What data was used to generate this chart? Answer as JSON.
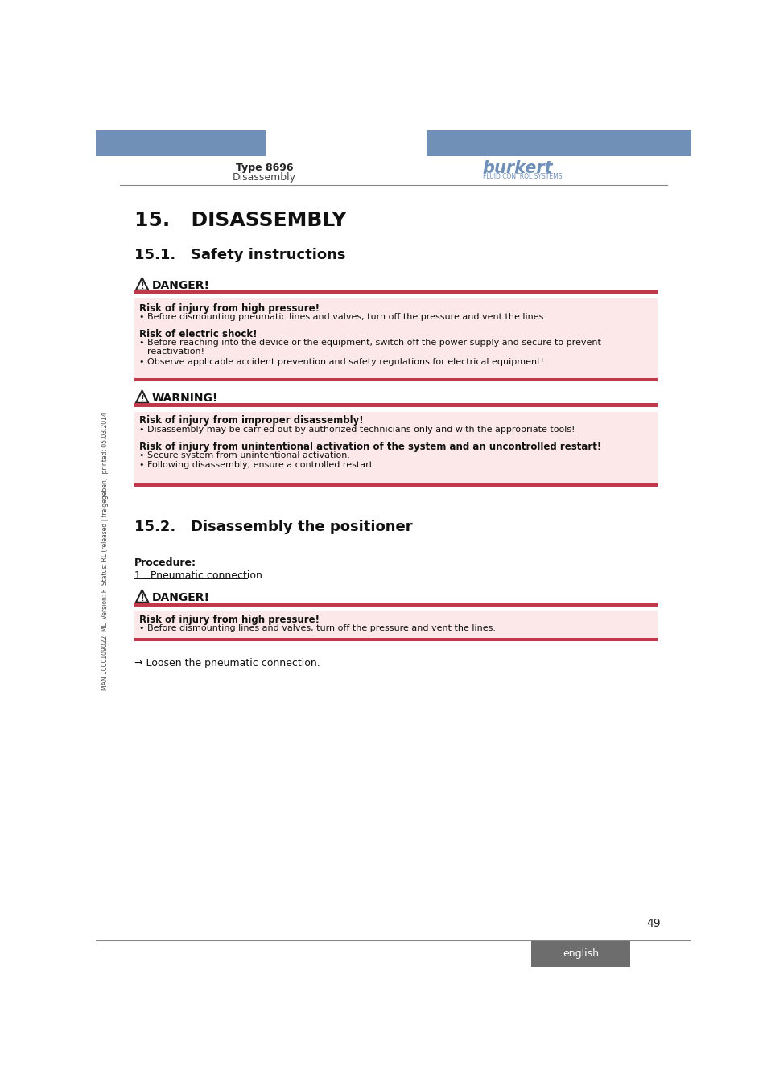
{
  "page_bg": "#ffffff",
  "header_blue": "#7090b8",
  "header_text_left": "Type 8696",
  "header_subtext_left": "Disassembly",
  "burkert_text": "burkert",
  "burkert_sub": "FLUID CONTROL SYSTEMS",
  "section_title": "15.   DISASSEMBLY",
  "section_sub": "15.1.   Safety instructions",
  "danger_label": "DANGER!",
  "warning_label": "WARNING!",
  "danger2_label": "DANGER!",
  "red_bar_color": "#c0394b",
  "pink_bg_color": "#fce8e8",
  "section2_title": "15.2.   Disassembly the positioner",
  "procedure_label": "Procedure:",
  "procedure_step": "1.  Pneumatic connection",
  "arrow_text": "→ Loosen the pneumatic connection.",
  "page_number": "49",
  "footer_tab_text": "english",
  "footer_tab_bg": "#6d6d6d",
  "footer_tab_fg": "#ffffff",
  "side_text": "MAN 1000109022  ML  Version: F  Status: RL (released | freigegeben)  printed: 05.03.2014",
  "line_color": "#888888"
}
